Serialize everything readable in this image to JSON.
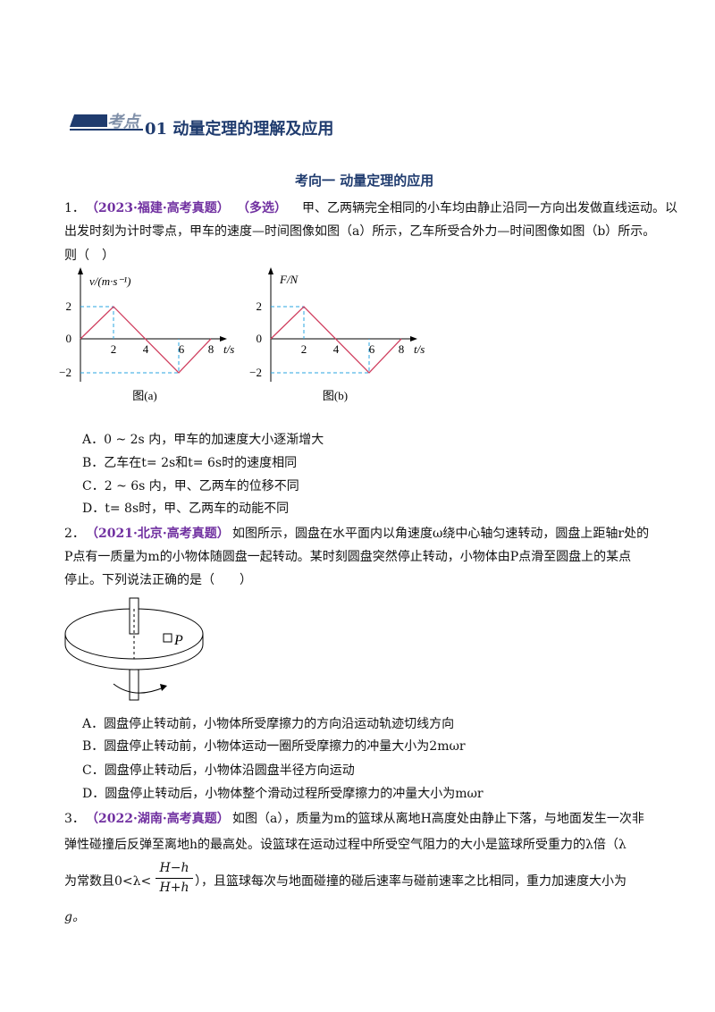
{
  "header": {
    "badge": "考点",
    "title": "01 动量定理的理解及应用"
  },
  "section": "考向一  动量定理的应用",
  "questions": [
    {
      "number": "1．",
      "source": "（2023·福建·高考真题）",
      "tag": "（多选）",
      "lines": [
        "甲、乙两辆完全相同的小车均由静止沿同一方向出发做直线运动。以",
        "出发时刻为计时零点，甲车的速度—时间图像如图（a）所示，乙车所受合外力—时间图像如图（b）所示。",
        "则（　）"
      ],
      "figures": [
        {
          "y_label": "v/(m·s⁻¹)",
          "x_label": "t/s",
          "origin": "0",
          "y_ticks": [
            "2",
            "−2"
          ],
          "x_ticks": [
            "2",
            "4",
            "6",
            "8"
          ],
          "caption": "图(a)"
        },
        {
          "y_label": "F/N",
          "x_label": "t/s",
          "origin": "0",
          "y_ticks": [
            "2",
            "−2"
          ],
          "x_ticks": [
            "2",
            "4",
            "6",
            "8"
          ],
          "caption": "图(b)"
        }
      ],
      "options": [
        "A．0 ~ 2s 内，甲车的加速度大小逐渐增大",
        "B．乙车在t= 2s和t= 6s时的速度相同",
        "C．2 ~ 6s 内，甲、乙两车的位移不同",
        "D．t= 8s时，甲、乙两车的动能不同"
      ]
    },
    {
      "number": "2．",
      "source": "（2021·北京·高考真题）",
      "lines": [
        "如图所示，圆盘在水平面内以角速度ω绕中心轴匀速转动，圆盘上距轴r处的",
        "P点有一质量为m的小物体随圆盘一起转动。某时刻圆盘突然停止转动，小物体由P点滑至圆盘上的某点",
        "停止。下列说法正确的是（　　）"
      ],
      "figure_label": "P",
      "options": [
        "A．圆盘停止转动前，小物体所受摩擦力的方向沿运动轨迹切线方向",
        "B．圆盘停止转动前，小物体运动一圈所受摩擦力的冲量大小为2mωr",
        "C．圆盘停止转动后，小物体沿圆盘半径方向运动",
        "D．圆盘停止转动后，小物体整个滑动过程所受摩擦力的冲量大小为mωr"
      ]
    },
    {
      "number": "3．",
      "source": "（2022·湖南·高考真题）",
      "lines": [
        "如图（a），质量为m的篮球从离地H高度处由静止下落，与地面发生一次非",
        "弹性碰撞后反弹至离地h的最高处。设篮球在运动过程中所受空气阻力的大小是篮球所受重力的λ倍（λ"
      ],
      "line3_before": "为常数且0<λ<",
      "fraction_num": "H−h",
      "fraction_den": "H+h",
      "line3_after": "），且篮球每次与地面碰撞的碰后速率与碰前速率之比相同，重力加速度大小为",
      "line4": "g。"
    }
  ]
}
